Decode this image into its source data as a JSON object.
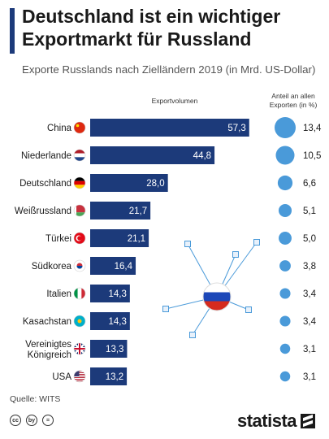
{
  "header": {
    "title": "Deutschland ist ein wichtiger Exportmarkt für Russland",
    "subtitle": "Exporte Russlands nach Zielländern 2019 (in Mrd. US-Dollar)"
  },
  "columns": {
    "volume": "Exportvolumen",
    "share": "Anteil an allen Exporten (in %)"
  },
  "colors": {
    "bar": "#1c3a7a",
    "bubble": "#4a9ad9",
    "accent": "#1c3a7a",
    "connector": "#4a9ad9"
  },
  "chart_data": {
    "type": "bar",
    "orientation": "horizontal",
    "categories": [
      "China",
      "Niederlande",
      "Deutschland",
      "Weißrussland",
      "Türkei",
      "Südkorea",
      "Italien",
      "Kasachstan",
      "Vereinigtes Königreich",
      "USA"
    ],
    "category_labels": [
      [
        "China"
      ],
      [
        "Niederlande"
      ],
      [
        "Deutschland"
      ],
      [
        "Weißrussland"
      ],
      [
        "Türkei"
      ],
      [
        "Südkorea"
      ],
      [
        "Italien"
      ],
      [
        "Kasachstan"
      ],
      [
        "Vereinigtes",
        "Königreich"
      ],
      [
        "USA"
      ]
    ],
    "values": [
      57.3,
      44.8,
      28.0,
      21.7,
      21.1,
      16.4,
      14.3,
      14.3,
      13.3,
      13.2
    ],
    "value_labels": [
      "57,3",
      "44,8",
      "28,0",
      "21,7",
      "21,1",
      "16,4",
      "14,3",
      "14,3",
      "13,3",
      "13,2"
    ],
    "share_values": [
      13.4,
      10.5,
      6.6,
      5.1,
      5.0,
      3.8,
      3.4,
      3.4,
      3.1,
      3.1
    ],
    "share_labels": [
      "13,4",
      "10,5",
      "6,6",
      "5,1",
      "5,0",
      "3,8",
      "3,4",
      "3,4",
      "3,1",
      "3,1"
    ],
    "flags": [
      "china-flag",
      "netherlands-flag",
      "germany-flag",
      "belarus-flag",
      "turkey-flag",
      "south-korea-flag",
      "italy-flag",
      "kazakhstan-flag",
      "united-kingdom-flag",
      "usa-flag"
    ],
    "xlim": [
      0,
      60
    ],
    "grid": false,
    "legend": "none"
  },
  "footer": {
    "source": "Quelle: WITS",
    "cc_icons": [
      "cc",
      "by",
      "="
    ],
    "brand": "statista"
  }
}
